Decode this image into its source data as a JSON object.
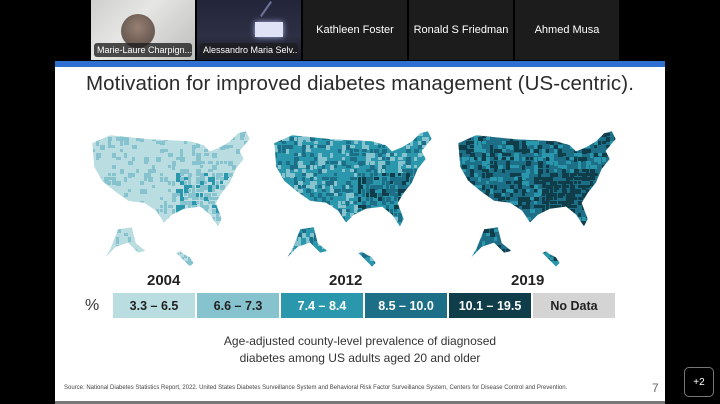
{
  "participants": [
    {
      "name": "Marie-Laure Charpign...",
      "video": true
    },
    {
      "name": "Alessandro Maria Selv...",
      "video": true
    },
    {
      "name": "Kathleen Foster",
      "video": false
    },
    {
      "name": "Ronald S Friedman",
      "video": false
    },
    {
      "name": "Ahmed Musa",
      "video": false
    }
  ],
  "more_participants_label": "+2",
  "slide": {
    "title": "Motivation for improved diabetes management (US-centric).",
    "accent_color": "#2e6fcf",
    "maps": [
      {
        "year": "2004",
        "dominant_bin": 0
      },
      {
        "year": "2012",
        "dominant_bin": 2
      },
      {
        "year": "2019",
        "dominant_bin": 3
      }
    ],
    "legend": {
      "unit": "%",
      "bins": [
        {
          "label": "3.3 – 6.5",
          "color": "#b9dde1",
          "text_color": "#222222"
        },
        {
          "label": "6.6 – 7.3",
          "color": "#86c3cf",
          "text_color": "#222222"
        },
        {
          "label": "7.4 – 8.4",
          "color": "#2b97ad",
          "text_color": "#ffffff"
        },
        {
          "label": "8.5 – 10.0",
          "color": "#1c6f86",
          "text_color": "#ffffff"
        },
        {
          "label": "10.1 – 19.5",
          "color": "#0f3d4a",
          "text_color": "#ffffff"
        },
        {
          "label": "No Data",
          "color": "#d4d4d4",
          "text_color": "#222222"
        }
      ]
    },
    "caption_line1": "Age-adjusted county-level prevalence of diagnosed",
    "caption_line2": "diabetes among US adults aged 20 and older",
    "source": "Source: National Diabetes Statistics Report, 2022. United States Diabetes Surveillance System and Behavioral Risk Factor Surveillance System, Centers for Disease Control and Prevention.",
    "page_number": "7"
  }
}
